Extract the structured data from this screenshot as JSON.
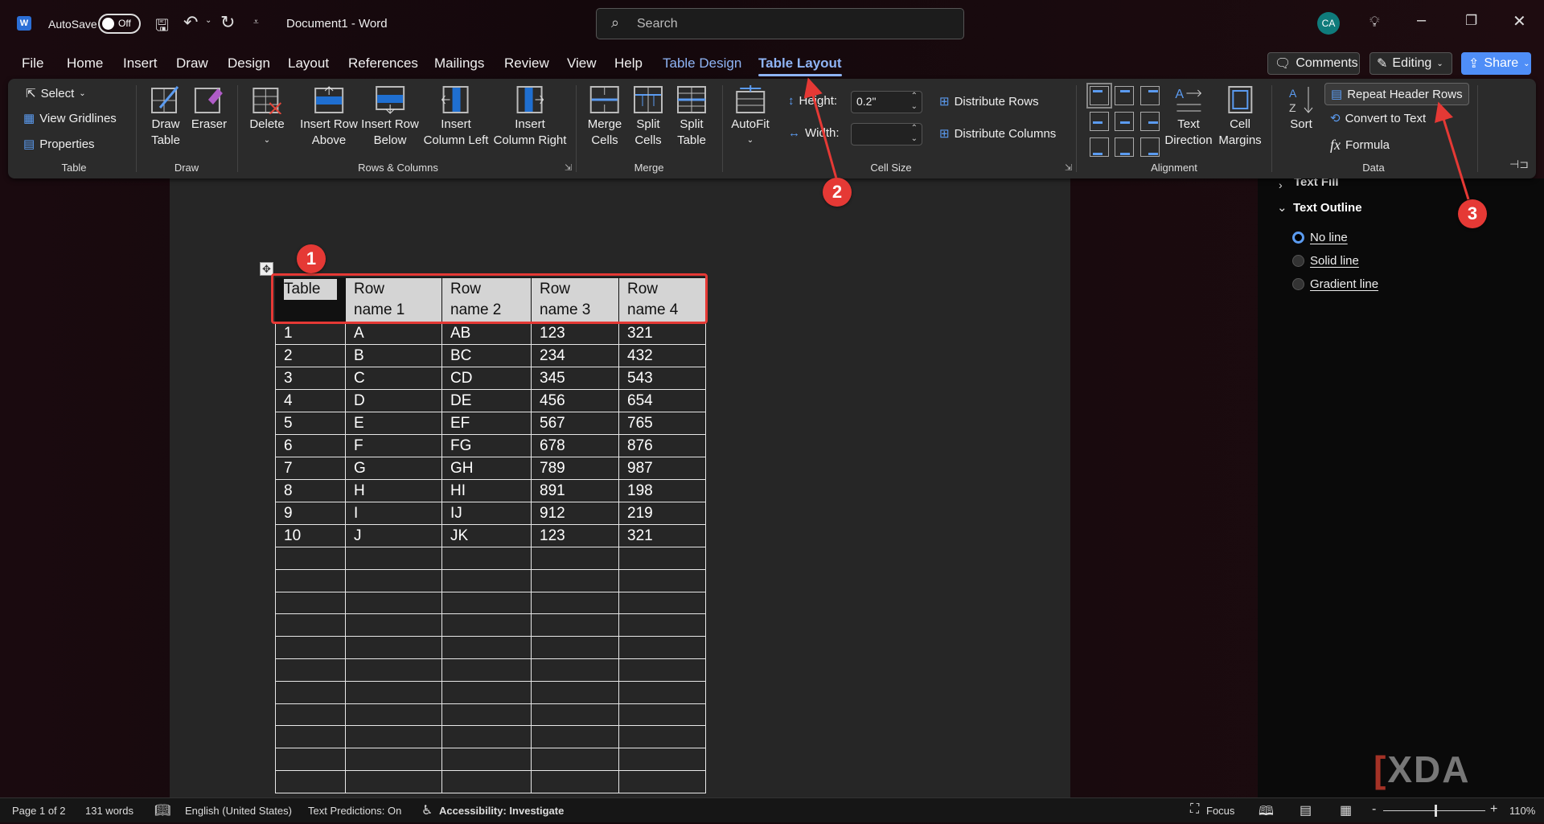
{
  "titlebar": {
    "autosave_label": "AutoSave",
    "autosave_state": "Off",
    "doc_title": "Document1  -  Word",
    "search_placeholder": "Search",
    "avatar_initials": "CA"
  },
  "tabs": [
    "File",
    "Home",
    "Insert",
    "Draw",
    "Design",
    "Layout",
    "References",
    "Mailings",
    "Review",
    "View",
    "Help",
    "Table Design",
    "Table Layout"
  ],
  "active_tab": "Table Layout",
  "top_buttons": {
    "comments": "Comments",
    "editing": "Editing",
    "share": "Share"
  },
  "ribbon": {
    "table": {
      "select": "Select",
      "view_gridlines": "View Gridlines",
      "properties": "Properties",
      "label": "Table"
    },
    "draw": {
      "draw_table": [
        "Draw",
        "Table"
      ],
      "eraser": "Eraser",
      "label": "Draw"
    },
    "rows_columns": {
      "delete": "Delete",
      "insert_above": [
        "Insert Row",
        "Above"
      ],
      "insert_below": [
        "Insert Row",
        "Below"
      ],
      "insert_left": [
        "Insert",
        "Column Left"
      ],
      "insert_right": [
        "Insert",
        "Column Right"
      ],
      "label": "Rows & Columns"
    },
    "merge": {
      "merge_cells": [
        "Merge",
        "Cells"
      ],
      "split_cells": [
        "Split",
        "Cells"
      ],
      "split_table": [
        "Split",
        "Table"
      ],
      "label": "Merge"
    },
    "cell_size": {
      "autofit": "AutoFit",
      "height_label": "Height:",
      "height_value": "0.2\"",
      "width_label": "Width:",
      "width_value": "",
      "distribute_rows": "Distribute Rows",
      "distribute_columns": "Distribute Columns",
      "label": "Cell Size"
    },
    "alignment": {
      "text_direction": [
        "Text",
        "Direction"
      ],
      "cell_margins": [
        "Cell",
        "Margins"
      ],
      "label": "Alignment"
    },
    "data": {
      "sort": "Sort",
      "repeat_header_rows": "Repeat Header Rows",
      "convert_to_text": "Convert to Text",
      "formula": "Formula",
      "label": "Data"
    }
  },
  "table": {
    "header": [
      "Table",
      "Row\nname 1",
      "Row\nname 2",
      "Row\nname 3",
      "Row\nname 4"
    ],
    "rows": [
      [
        "1",
        "A",
        "AB",
        "123",
        "321"
      ],
      [
        "2",
        "B",
        "BC",
        "234",
        "432"
      ],
      [
        "3",
        "C",
        "CD",
        "345",
        "543"
      ],
      [
        "4",
        "D",
        "DE",
        "456",
        "654"
      ],
      [
        "5",
        "E",
        "EF",
        "567",
        "765"
      ],
      [
        "6",
        "F",
        "FG",
        "678",
        "876"
      ],
      [
        "7",
        "G",
        "GH",
        "789",
        "987"
      ],
      [
        "8",
        "H",
        "HI",
        "891",
        "198"
      ],
      [
        "9",
        "I",
        "IJ",
        "912",
        "219"
      ],
      [
        "10",
        "J",
        "JK",
        "123",
        "321"
      ]
    ]
  },
  "annotations": [
    "1",
    "2",
    "3"
  ],
  "panel": {
    "text_fill": "Text Fill",
    "text_outline": "Text Outline",
    "options": [
      "No line",
      "Solid line",
      "Gradient line"
    ],
    "selected": "No line"
  },
  "statusbar": {
    "page": "Page 1 of 2",
    "words": "131 words",
    "language": "English (United States)",
    "predictions": "Text Predictions: On",
    "accessibility": "Accessibility: Investigate",
    "focus": "Focus",
    "zoom": "110%",
    "zoom_level_percent": 110
  },
  "watermark": "XDA",
  "colors": {
    "accent": "#8fb4f5",
    "share": "#4f8ef7",
    "annotation": "#e53935",
    "avatar": "#0f7b7b"
  }
}
